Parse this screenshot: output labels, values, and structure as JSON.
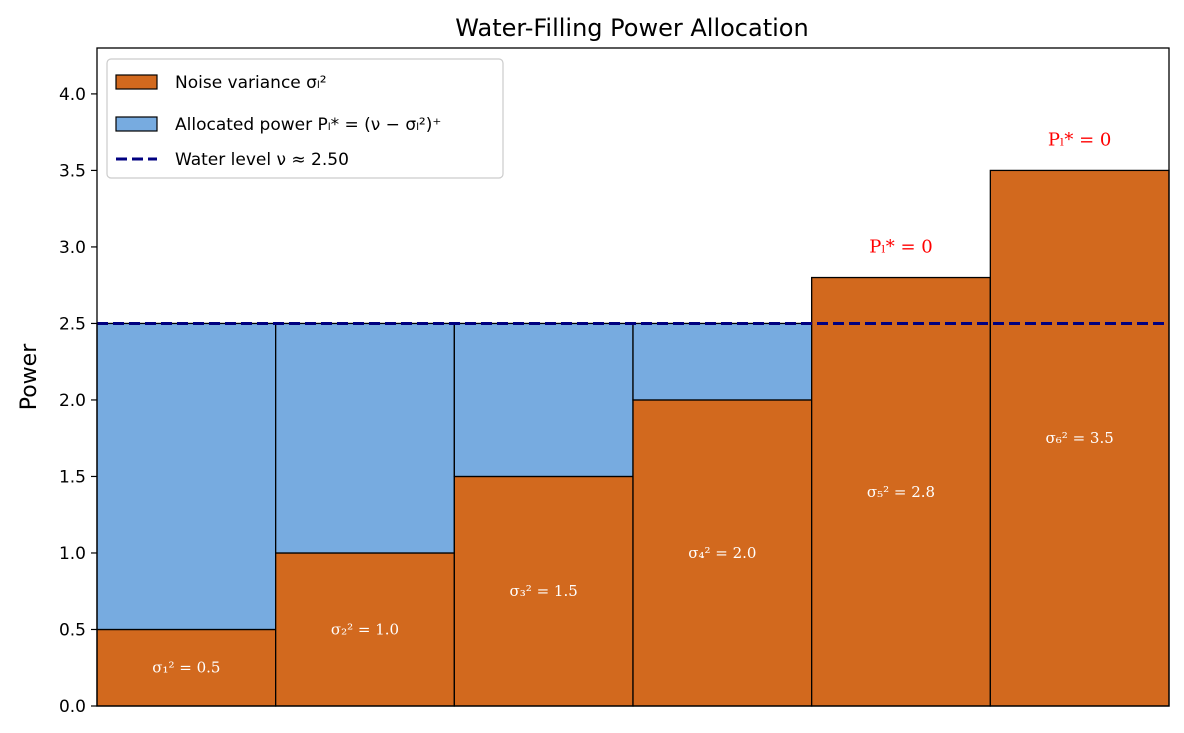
{
  "chart_data": {
    "type": "bar",
    "title": "Water-Filling Power Allocation",
    "xlabel": "",
    "ylabel": "Power",
    "ylim": [
      0,
      4.3
    ],
    "yticks": [
      0.0,
      0.5,
      1.0,
      1.5,
      2.0,
      2.5,
      3.0,
      3.5,
      4.0
    ],
    "ytick_labels": [
      "0.0",
      "0.5",
      "1.0",
      "1.5",
      "2.0",
      "2.5",
      "3.0",
      "3.5",
      "4.0"
    ],
    "grid": false,
    "legend_position": "top-left",
    "water_level": 2.5,
    "noise_color": "#d2691e",
    "power_color": "#77abe0",
    "water_color": "#000080",
    "zero_label_color": "#ff0000",
    "series": [
      {
        "name": "Noise variance σ_l²",
        "values": [
          0.5,
          1.0,
          1.5,
          2.0,
          2.8,
          3.5
        ]
      },
      {
        "name": "Allocated power P_l* = (ν − σ_l²)⁺",
        "values": [
          2.0,
          1.5,
          1.0,
          0.5,
          0.0,
          0.0
        ]
      }
    ],
    "bar_labels": [
      "σ₁² = 0.5",
      "σ₂² = 1.0",
      "σ₃² = 1.5",
      "σ₄² = 2.0",
      "σ₅² = 2.8",
      "σ₆² = 3.5"
    ],
    "zero_power_labels": [
      "",
      "",
      "",
      "",
      "Pₗ* = 0",
      "Pₗ* = 0"
    ],
    "legend": [
      {
        "label": "Noise variance σₗ²",
        "kind": "noise"
      },
      {
        "label": "Allocated power Pₗ* = (ν − σₗ²)⁺",
        "kind": "power"
      },
      {
        "label": "Water level ν ≈ 2.50",
        "kind": "water"
      }
    ]
  }
}
